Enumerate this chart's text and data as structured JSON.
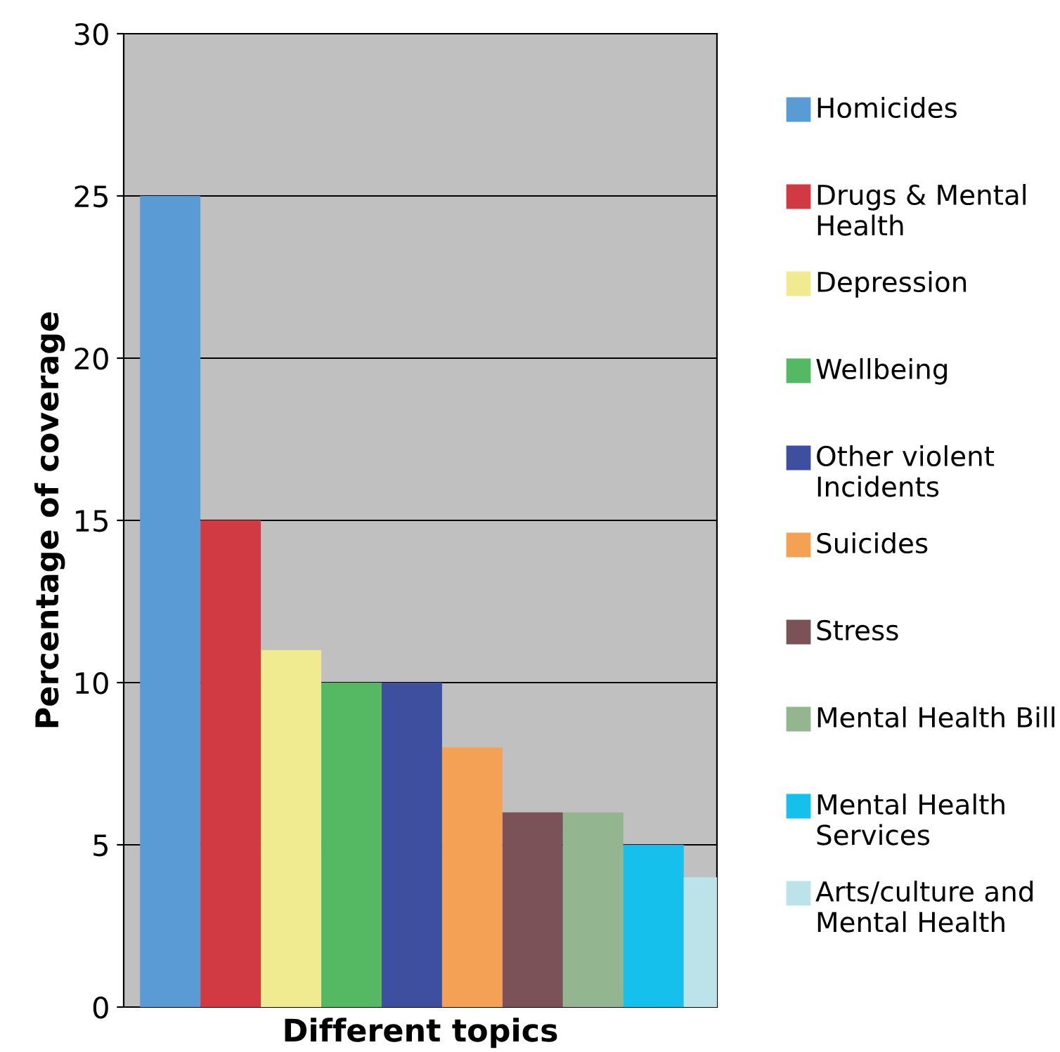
{
  "chart_data": {
    "type": "bar",
    "xlabel": "Different topics",
    "ylabel": "Percentage of coverage",
    "categories": [
      null,
      null,
      null,
      null,
      null,
      null,
      null,
      null,
      null,
      null
    ],
    "series": [
      {
        "name": "Homicides",
        "color": "#5b9bd5",
        "values": [
          25,
          null,
          null,
          null,
          null,
          null,
          null,
          null,
          null,
          null
        ]
      },
      {
        "name": "Drugs & Mental Health",
        "color": "#d13a43",
        "values": [
          null,
          15,
          null,
          null,
          null,
          null,
          null,
          null,
          null,
          null
        ]
      },
      {
        "name": "Depression",
        "color": "#f0eb90",
        "values": [
          null,
          null,
          11,
          null,
          null,
          null,
          null,
          null,
          null,
          null
        ]
      },
      {
        "name": "Wellbeing",
        "color": "#55b963",
        "values": [
          null,
          null,
          null,
          10,
          null,
          null,
          null,
          null,
          null,
          null
        ]
      },
      {
        "name": "Other violent Incidents",
        "color": "#3f4fa0",
        "values": [
          null,
          null,
          null,
          null,
          10,
          null,
          null,
          null,
          null,
          null
        ]
      },
      {
        "name": "Suicides",
        "color": "#f5a155",
        "values": [
          null,
          null,
          null,
          null,
          null,
          8,
          null,
          null,
          null,
          null
        ]
      },
      {
        "name": "Stress",
        "color": "#7a5257",
        "values": [
          null,
          null,
          null,
          null,
          null,
          null,
          6,
          null,
          null,
          null
        ]
      },
      {
        "name": "Mental Health Bill",
        "color": "#93b58f",
        "values": [
          null,
          null,
          null,
          null,
          null,
          null,
          null,
          6,
          null,
          null
        ]
      },
      {
        "name": "Mental Health Services",
        "color": "#15c0ec",
        "values": [
          null,
          null,
          null,
          null,
          null,
          null,
          null,
          null,
          5,
          null
        ]
      },
      {
        "name": "Arts/culture and Mental Health",
        "color": "#bde3ea",
        "values": [
          null,
          null,
          null,
          null,
          null,
          null,
          null,
          null,
          null,
          4
        ]
      }
    ],
    "ylim": [
      0,
      30
    ],
    "yticks": [
      0,
      5,
      10,
      15,
      20,
      25,
      30
    ],
    "grid": "y",
    "legend": "right"
  }
}
